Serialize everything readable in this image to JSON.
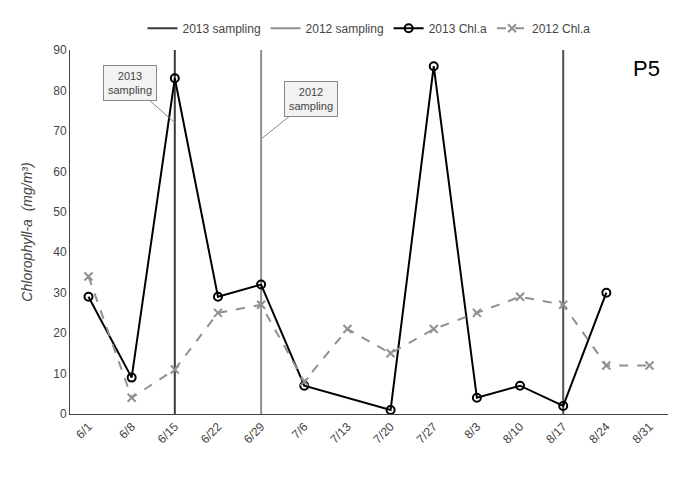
{
  "chart_data": {
    "type": "line",
    "y_label": "Chlorophyll-a  (mg/m³)",
    "series": [
      {
        "name": "2013 sampling",
        "type": "vline",
        "color": "#3a3a3a",
        "x": [
          14
        ]
      },
      {
        "name": "2012 sampling",
        "type": "vline",
        "color": "#909090",
        "x": [
          28
        ]
      },
      {
        "type": "vline",
        "color": "#505050",
        "x": [
          77
        ]
      },
      {
        "name": "2013 Chl.a",
        "type": "line",
        "color": "#000000",
        "marker": "circle",
        "line_style": "solid",
        "x": [
          0,
          7,
          14,
          21,
          28,
          35,
          49,
          56,
          63,
          70,
          77,
          84
        ],
        "values": [
          29,
          9,
          83,
          29,
          32,
          7,
          1,
          86,
          4,
          7,
          2,
          30
        ]
      },
      {
        "name": "2012 Chl.a",
        "type": "line",
        "color": "#909090",
        "marker": "x",
        "line_style": "dash",
        "x": [
          0,
          7,
          14,
          21,
          28,
          35,
          42,
          49,
          56,
          63,
          70,
          77,
          84,
          91
        ],
        "values": [
          34,
          4,
          11,
          25,
          27,
          8,
          21,
          15,
          21,
          25,
          29,
          27,
          12,
          12
        ]
      }
    ],
    "xlim": [
      -3,
      94
    ],
    "xticks": [
      {
        "value": 0,
        "label": "6/1"
      },
      {
        "value": 7,
        "label": "6/8"
      },
      {
        "value": 14,
        "label": "6/15"
      },
      {
        "value": 21,
        "label": "6/22"
      },
      {
        "value": 28,
        "label": "6/29"
      },
      {
        "value": 35,
        "label": "7/6"
      },
      {
        "value": 42,
        "label": "7/13"
      },
      {
        "value": 49,
        "label": "7/20"
      },
      {
        "value": 56,
        "label": "7/27"
      },
      {
        "value": 63,
        "label": "8/3"
      },
      {
        "value": 70,
        "label": "8/10"
      },
      {
        "value": 77,
        "label": "8/17"
      },
      {
        "value": 84,
        "label": "8/24"
      },
      {
        "value": 91,
        "label": "8/31"
      }
    ],
    "ylim": [
      0,
      90
    ],
    "yticks": [
      0,
      10,
      20,
      30,
      40,
      50,
      60,
      70,
      80,
      90
    ],
    "grid": false,
    "legend": "upper center",
    "annotations": [
      {
        "text": "2013\nsampling",
        "x": 14,
        "y": 72
      },
      {
        "text": "2012\nsampling",
        "x": 28,
        "y": 68
      },
      {
        "text": "P5"
      }
    ]
  }
}
